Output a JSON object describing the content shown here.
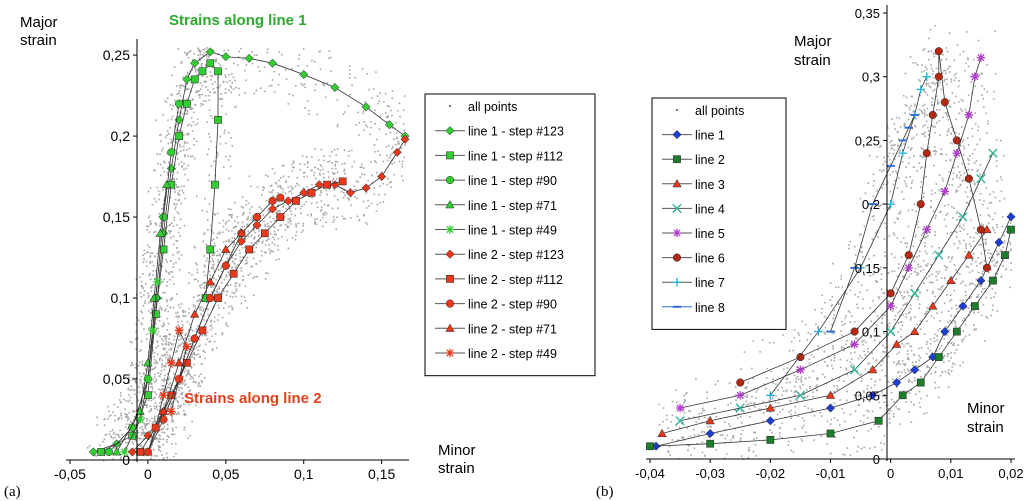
{
  "colors": {
    "cloud": "#a6a6a6",
    "green": "#33cc33",
    "green_dark": "#1f7a1f",
    "red": "#e8391c",
    "brown": "#b22a12",
    "blue": "#1f3fd0",
    "magenta": "#b03cc8",
    "teal": "#33b59b",
    "cyan": "#25b5d8",
    "dark_green": "#1e7d2b",
    "green_title": "#2ea82e",
    "red_label": "#e2411e"
  },
  "chart_data": [
    {
      "type": "scatter",
      "panel_label": "(a)",
      "title": "Strains along line 1",
      "annotation": "Strains along line 2",
      "xlabel": "Minor\nstrain",
      "ylabel": "Major\nstrain",
      "xlim": [
        -0.05,
        0.17
      ],
      "ylim": [
        0,
        0.26
      ],
      "x_ticks": [
        "-0,05",
        "0",
        "0,05",
        "0,1",
        "0,15"
      ],
      "x_tick_values": [
        -0.05,
        0,
        0.05,
        0.1,
        0.15
      ],
      "y_ticks": [
        "0",
        "0,05",
        "0,1",
        "0,15",
        "0,2",
        "0,25"
      ],
      "y_tick_values": [
        0,
        0.05,
        0.1,
        0.15,
        0.2,
        0.25
      ],
      "legend": [
        "all points",
        "line 1 - step #123",
        "line 1 - step #112",
        "line 1 - step #90",
        "line 1 - step #71",
        "line 1 - step #49",
        "line 2 - step #123",
        "line 2 - step #112",
        "line 2 - step #90",
        "line 2 - step #71",
        "line 2 - step #49"
      ],
      "series": [
        {
          "name": "line 1 - step #123",
          "marker": "diamond",
          "color": "#33cc33",
          "x": [
            -0.035,
            -0.02,
            -0.01,
            0.0,
            0.006,
            0.01,
            0.015,
            0.02,
            0.025,
            0.03,
            0.04,
            0.05,
            0.065,
            0.08,
            0.1,
            0.12,
            0.14,
            0.155,
            0.165
          ],
          "y": [
            0.005,
            0.01,
            0.02,
            0.05,
            0.1,
            0.14,
            0.18,
            0.21,
            0.235,
            0.245,
            0.252,
            0.249,
            0.248,
            0.245,
            0.238,
            0.23,
            0.218,
            0.207,
            0.2
          ]
        },
        {
          "name": "line 1 - step #112",
          "marker": "square",
          "color": "#33cc33",
          "x": [
            -0.03,
            -0.01,
            0.0,
            0.005,
            0.01,
            0.015,
            0.02,
            0.025,
            0.03,
            0.035,
            0.04,
            0.045,
            0.045,
            0.043,
            0.04,
            0.037
          ],
          "y": [
            0.005,
            0.015,
            0.04,
            0.09,
            0.13,
            0.17,
            0.2,
            0.22,
            0.235,
            0.24,
            0.245,
            0.24,
            0.21,
            0.17,
            0.13,
            0.1
          ]
        },
        {
          "name": "line 1 - step #90",
          "marker": "circle",
          "color": "#33cc33",
          "x": [
            -0.025,
            -0.01,
            0.0,
            0.005,
            0.01,
            0.015,
            0.02
          ],
          "y": [
            0.005,
            0.02,
            0.05,
            0.1,
            0.15,
            0.19,
            0.22
          ]
        },
        {
          "name": "line 1 - step #71",
          "marker": "triangle",
          "color": "#33cc33",
          "x": [
            -0.02,
            -0.005,
            0.0,
            0.004,
            0.008,
            0.012
          ],
          "y": [
            0.005,
            0.03,
            0.06,
            0.1,
            0.14,
            0.17
          ]
        },
        {
          "name": "line 1 - step #49",
          "marker": "star",
          "color": "#33cc33",
          "x": [
            -0.015,
            -0.005,
            0.0,
            0.003,
            0.006
          ],
          "y": [
            0.005,
            0.025,
            0.05,
            0.08,
            0.11
          ]
        },
        {
          "name": "line 2 - step #123",
          "marker": "diamond",
          "color": "#e8391c",
          "x": [
            -0.01,
            0.0,
            0.01,
            0.02,
            0.03,
            0.04,
            0.05,
            0.06,
            0.07,
            0.08,
            0.09,
            0.1,
            0.11,
            0.12,
            0.13,
            0.14,
            0.15,
            0.16,
            0.165
          ],
          "y": [
            0.005,
            0.015,
            0.03,
            0.05,
            0.075,
            0.1,
            0.12,
            0.135,
            0.145,
            0.155,
            0.16,
            0.165,
            0.17,
            0.17,
            0.165,
            0.168,
            0.175,
            0.19,
            0.198
          ]
        },
        {
          "name": "line 2 - step #112",
          "marker": "square",
          "color": "#e8391c",
          "x": [
            -0.005,
            0.005,
            0.015,
            0.025,
            0.035,
            0.045,
            0.055,
            0.065,
            0.075,
            0.085,
            0.095,
            0.105,
            0.115,
            0.125
          ],
          "y": [
            0.005,
            0.02,
            0.04,
            0.06,
            0.08,
            0.1,
            0.115,
            0.13,
            0.14,
            0.15,
            0.16,
            0.165,
            0.17,
            0.172
          ]
        },
        {
          "name": "line 2 - step #90",
          "marker": "circle",
          "color": "#e8391c",
          "x": [
            0.0,
            0.01,
            0.02,
            0.03,
            0.04,
            0.05,
            0.06,
            0.07,
            0.08,
            0.085
          ],
          "y": [
            0.005,
            0.025,
            0.05,
            0.075,
            0.1,
            0.12,
            0.14,
            0.15,
            0.16,
            0.162
          ]
        },
        {
          "name": "line 2 - step #71",
          "marker": "triangle",
          "color": "#e8391c",
          "x": [
            0.0,
            0.01,
            0.02,
            0.03,
            0.04,
            0.05,
            0.06
          ],
          "y": [
            0.005,
            0.03,
            0.06,
            0.09,
            0.11,
            0.13,
            0.14
          ]
        },
        {
          "name": "line 2 - step #49",
          "marker": "star",
          "color": "#e8391c",
          "x": [
            0.0,
            0.005,
            0.01,
            0.015,
            0.02,
            0.025,
            0.02,
            0.015
          ],
          "y": [
            0.005,
            0.02,
            0.04,
            0.06,
            0.08,
            0.07,
            0.05,
            0.03
          ]
        }
      ]
    },
    {
      "type": "scatter",
      "panel_label": "(b)",
      "xlabel": "Minor\nstrain",
      "ylabel": "Major\nstrain",
      "xlim": [
        -0.04,
        0.021
      ],
      "ylim": [
        0,
        0.35
      ],
      "x_ticks": [
        "-0,04",
        "-0,03",
        "-0,02",
        "-0,01",
        "0",
        "0,01",
        "0,02"
      ],
      "x_tick_values": [
        -0.04,
        -0.03,
        -0.02,
        -0.01,
        0,
        0.01,
        0.02
      ],
      "y_ticks": [
        "0",
        "0,05",
        "0,1",
        "0,15",
        "0,2",
        "0,25",
        "0,3",
        "0,35"
      ],
      "y_tick_values": [
        0,
        0.05,
        0.1,
        0.15,
        0.2,
        0.25,
        0.3,
        0.35
      ],
      "legend": [
        "all points",
        "line 1",
        "line 2",
        "line 3",
        "line 4",
        "line 5",
        "line 6",
        "line 7",
        "line 8"
      ],
      "series": [
        {
          "name": "line 1",
          "marker": "diamond",
          "color": "#1f3fd0",
          "x": [
            -0.039,
            -0.03,
            -0.02,
            -0.01,
            -0.003,
            0.001,
            0.004,
            0.007,
            0.009,
            0.012,
            0.015,
            0.018,
            0.02
          ],
          "y": [
            0.01,
            0.02,
            0.03,
            0.04,
            0.05,
            0.06,
            0.07,
            0.08,
            0.1,
            0.12,
            0.14,
            0.17,
            0.19
          ]
        },
        {
          "name": "line 2",
          "marker": "square",
          "color": "#1e7d2b",
          "x": [
            -0.04,
            -0.03,
            -0.02,
            -0.01,
            -0.002,
            0.002,
            0.005,
            0.008,
            0.011,
            0.014,
            0.017,
            0.019,
            0.02
          ],
          "y": [
            0.01,
            0.012,
            0.015,
            0.02,
            0.03,
            0.05,
            0.06,
            0.08,
            0.1,
            0.12,
            0.14,
            0.16,
            0.18
          ]
        },
        {
          "name": "line 3",
          "marker": "triangle",
          "color": "#e8391c",
          "x": [
            -0.038,
            -0.03,
            -0.02,
            -0.01,
            -0.003,
            0.001,
            0.004,
            0.007,
            0.01,
            0.013,
            0.016
          ],
          "y": [
            0.02,
            0.03,
            0.04,
            0.05,
            0.07,
            0.09,
            0.1,
            0.12,
            0.14,
            0.16,
            0.18
          ]
        },
        {
          "name": "line 4",
          "marker": "x",
          "color": "#33b59b",
          "x": [
            -0.035,
            -0.025,
            -0.015,
            -0.006,
            0.0,
            0.004,
            0.008,
            0.012,
            0.015,
            0.017
          ],
          "y": [
            0.03,
            0.04,
            0.05,
            0.07,
            0.1,
            0.13,
            0.16,
            0.19,
            0.22,
            0.24
          ]
        },
        {
          "name": "line 5",
          "marker": "star",
          "color": "#b03cc8",
          "x": [
            -0.035,
            -0.025,
            -0.015,
            -0.006,
            0.0,
            0.003,
            0.006,
            0.009,
            0.011,
            0.013,
            0.014,
            0.015
          ],
          "y": [
            0.04,
            0.05,
            0.07,
            0.09,
            0.12,
            0.15,
            0.18,
            0.21,
            0.24,
            0.27,
            0.3,
            0.315
          ]
        },
        {
          "name": "line 6",
          "marker": "circle",
          "color": "#b22a12",
          "x": [
            -0.025,
            -0.015,
            -0.006,
            0.0,
            0.003,
            0.005,
            0.006,
            0.007,
            0.008,
            0.008,
            0.009,
            0.011,
            0.013,
            0.015,
            0.016
          ],
          "y": [
            0.06,
            0.08,
            0.1,
            0.13,
            0.16,
            0.2,
            0.24,
            0.27,
            0.3,
            0.32,
            0.28,
            0.25,
            0.22,
            0.18,
            0.15
          ]
        },
        {
          "name": "line 7",
          "marker": "plus",
          "color": "#25b5d8",
          "x": [
            -0.02,
            -0.012,
            -0.005,
            0.0,
            0.002,
            0.004,
            0.005,
            0.006
          ],
          "y": [
            0.05,
            0.1,
            0.15,
            0.2,
            0.24,
            0.27,
            0.29,
            0.3
          ]
        },
        {
          "name": "line 8",
          "marker": "dash",
          "color": "#2f6fd8",
          "x": [
            -0.01,
            -0.006,
            -0.003,
            0.0,
            0.002,
            0.003,
            0.004
          ],
          "y": [
            0.1,
            0.15,
            0.2,
            0.23,
            0.25,
            0.26,
            0.27
          ]
        }
      ]
    }
  ]
}
